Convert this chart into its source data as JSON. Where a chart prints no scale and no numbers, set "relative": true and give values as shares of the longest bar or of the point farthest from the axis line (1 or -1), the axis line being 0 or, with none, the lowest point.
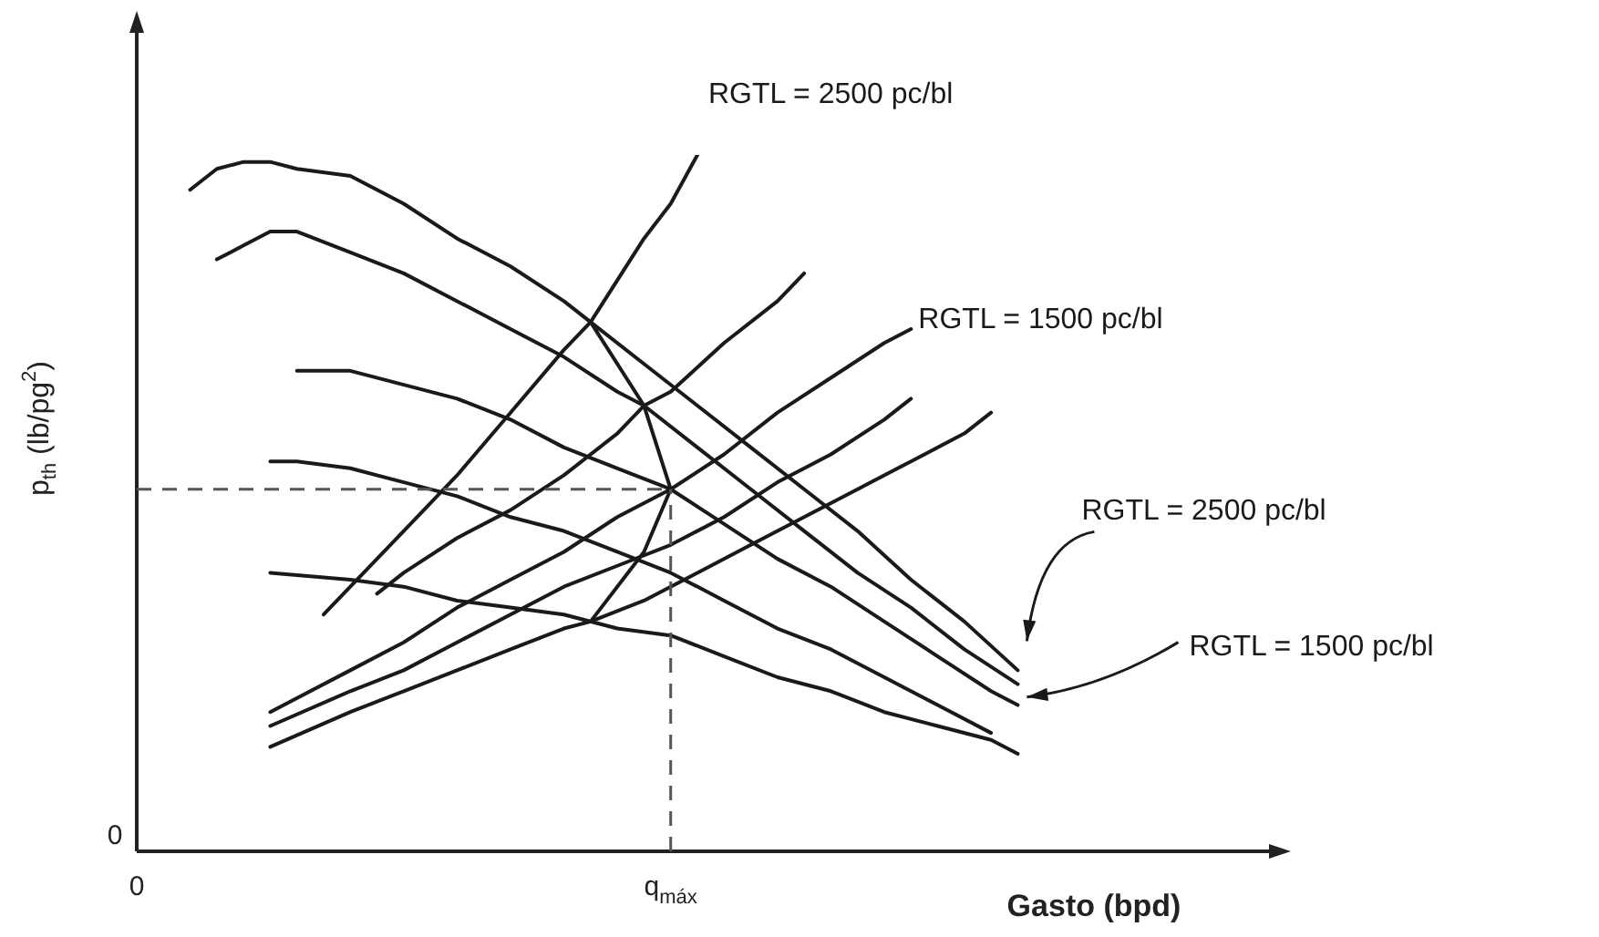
{
  "chart_data": {
    "type": "line",
    "relative": true,
    "marker": "none",
    "xlabel": "Gasto (bpd)",
    "ylabel": "p$_{th}$ (lb/pg$^{2}$)",
    "categories": [
      "0",
      null,
      null,
      null,
      null,
      null,
      null,
      null,
      null,
      null,
      null,
      null,
      null,
      null,
      null,
      null,
      null,
      null,
      null,
      null,
      "q$_{máx}$",
      null,
      null,
      null,
      null,
      null,
      null,
      null,
      null,
      null,
      null,
      null,
      null,
      null,
      null,
      null,
      null,
      null,
      null,
      null,
      null,
      null,
      null
    ],
    "series": [
      {
        "name": "RGTL = 2500 pc/bl",
        "color": "#1a1a1a",
        "values": [
          null,
          null,
          0.95,
          0.98,
          0.99,
          0.99,
          0.98,
          null,
          0.97,
          null,
          0.93,
          null,
          0.88,
          null,
          0.84,
          null,
          0.79,
          0.76,
          null,
          0.7,
          null,
          0.64,
          null,
          0.58,
          null,
          0.52,
          null,
          0.46,
          null,
          0.39,
          null,
          0.33,
          null,
          0.26,
          null,
          null,
          null,
          null,
          null,
          null,
          null,
          null,
          null
        ]
      },
      {
        "name": "RGTL = 1500 pc/bl",
        "color": "#1a1a1a",
        "values": [
          null,
          null,
          null,
          0.85,
          0.87,
          0.89,
          0.89,
          null,
          0.86,
          null,
          0.83,
          null,
          0.79,
          null,
          0.75,
          null,
          0.71,
          null,
          0.66,
          0.64,
          null,
          0.58,
          null,
          0.52,
          null,
          0.46,
          null,
          0.4,
          null,
          0.35,
          null,
          0.29,
          null,
          0.24,
          null,
          null,
          null,
          null,
          null,
          null,
          null,
          null,
          null
        ]
      },
      {
        "color": "#1a1a1a",
        "values": [
          null,
          null,
          null,
          null,
          null,
          null,
          0.69,
          null,
          0.69,
          null,
          0.67,
          null,
          0.65,
          null,
          0.62,
          null,
          0.58,
          null,
          0.55,
          null,
          0.52,
          null,
          0.47,
          null,
          0.42,
          null,
          0.38,
          null,
          0.33,
          null,
          0.28,
          null,
          0.23,
          0.21,
          null,
          null,
          null,
          null,
          null,
          null,
          null,
          null,
          null
        ]
      },
      {
        "color": "#1a1a1a",
        "values": [
          null,
          null,
          null,
          null,
          null,
          0.56,
          0.56,
          null,
          0.55,
          null,
          0.53,
          null,
          0.51,
          null,
          0.48,
          null,
          0.46,
          null,
          0.43,
          null,
          0.4,
          null,
          0.36,
          null,
          0.32,
          null,
          0.29,
          null,
          0.25,
          null,
          0.21,
          null,
          0.17,
          null,
          null,
          null,
          null,
          null,
          null,
          null,
          null,
          null,
          null
        ]
      },
      {
        "color": "#1a1a1a",
        "values": [
          null,
          null,
          null,
          null,
          null,
          0.4,
          null,
          null,
          0.39,
          null,
          0.38,
          null,
          0.36,
          null,
          0.35,
          null,
          0.34,
          null,
          0.32,
          null,
          0.31,
          null,
          0.28,
          null,
          0.25,
          null,
          0.23,
          null,
          0.2,
          null,
          0.18,
          null,
          0.16,
          0.14,
          null,
          null,
          null,
          null,
          null,
          null,
          null,
          null,
          null
        ]
      },
      {
        "name": "RGTL = 2500 pc/bl",
        "color": "#1a1a1a",
        "values": [
          null,
          null,
          null,
          null,
          null,
          null,
          null,
          0.34,
          0.38,
          null,
          0.46,
          null,
          0.54,
          null,
          0.63,
          null,
          0.72,
          0.76,
          null,
          0.88,
          0.93,
          1,
          null,
          null,
          null,
          null,
          null,
          null,
          null,
          null,
          null,
          null,
          null,
          null,
          null,
          null,
          null,
          null,
          null,
          null,
          null,
          null,
          null
        ]
      },
      {
        "color": "#1a1a1a",
        "values": [
          null,
          null,
          null,
          null,
          null,
          null,
          null,
          null,
          null,
          0.37,
          0.4,
          null,
          0.45,
          null,
          0.49,
          null,
          0.54,
          null,
          0.6,
          0.64,
          0.66,
          null,
          0.73,
          null,
          0.79,
          0.83,
          null,
          null,
          null,
          null,
          null,
          null,
          null,
          null,
          null,
          null,
          null,
          null,
          null,
          null,
          null,
          null,
          null
        ]
      },
      {
        "name": "RGTL = 1500 pc/bl",
        "color": "#1a1a1a",
        "values": [
          null,
          null,
          null,
          null,
          null,
          0.2,
          null,
          null,
          0.26,
          null,
          0.3,
          null,
          0.35,
          null,
          0.39,
          null,
          0.43,
          null,
          0.48,
          null,
          0.52,
          null,
          0.57,
          null,
          0.63,
          null,
          0.68,
          null,
          0.73,
          0.75,
          null,
          null,
          null,
          null,
          null,
          null,
          null,
          null,
          null,
          null,
          null,
          null,
          null
        ]
      },
      {
        "color": "#1a1a1a",
        "values": [
          null,
          null,
          null,
          null,
          null,
          0.18,
          null,
          null,
          0.23,
          null,
          0.26,
          null,
          0.3,
          null,
          0.34,
          null,
          0.38,
          null,
          0.41,
          null,
          0.44,
          null,
          0.48,
          null,
          0.53,
          null,
          0.57,
          null,
          0.62,
          0.65,
          null,
          null,
          null,
          null,
          null,
          null,
          null,
          null,
          null,
          null,
          null,
          null,
          null
        ]
      },
      {
        "color": "#1a1a1a",
        "values": [
          null,
          null,
          null,
          null,
          null,
          0.15,
          null,
          null,
          0.2,
          null,
          0.23,
          null,
          0.26,
          null,
          0.29,
          null,
          0.32,
          0.33,
          null,
          0.36,
          null,
          0.4,
          null,
          0.44,
          null,
          0.48,
          null,
          0.52,
          null,
          0.56,
          null,
          0.6,
          0.63,
          null,
          null,
          null,
          null,
          null,
          null,
          null,
          null,
          null,
          null
        ]
      },
      {
        "color": "#1a1a1a",
        "values": [
          null,
          null,
          null,
          null,
          null,
          null,
          null,
          null,
          null,
          null,
          null,
          null,
          null,
          null,
          null,
          null,
          null,
          0.76,
          null,
          0.64,
          0.52,
          null,
          null,
          null,
          null,
          null,
          null,
          null,
          null,
          null,
          null,
          null,
          null,
          null,
          null,
          null,
          null,
          null,
          null,
          null,
          null,
          null,
          null
        ]
      },
      {
        "color": "#1a1a1a",
        "values": [
          null,
          null,
          null,
          null,
          null,
          null,
          null,
          null,
          null,
          null,
          null,
          null,
          null,
          null,
          null,
          null,
          null,
          0.33,
          null,
          0.43,
          0.52,
          null,
          null,
          null,
          null,
          null,
          null,
          null,
          null,
          null,
          null,
          null,
          null,
          null,
          null,
          null,
          null,
          null,
          null,
          null,
          null,
          null,
          null
        ]
      }
    ],
    "ref_lines": [
      {
        "axis": "y",
        "value": 0.52,
        "line_style": "dashed",
        "color": "#555555"
      },
      {
        "axis": "x",
        "value": "q$_{máx}$",
        "line_style": "dashed",
        "color": "#555555"
      }
    ],
    "annotations": [
      "0"
    ]
  }
}
